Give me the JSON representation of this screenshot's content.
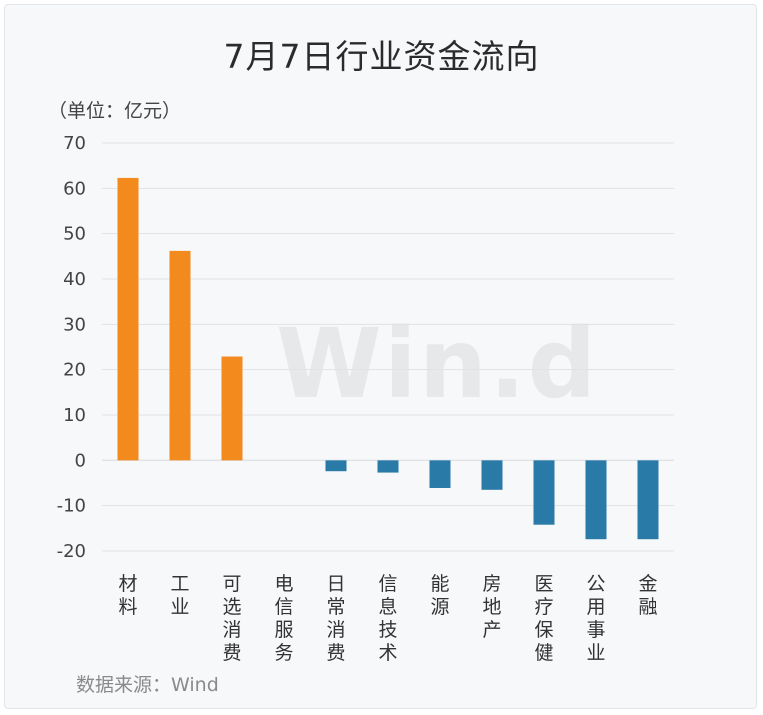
{
  "title": "7月7日行业资金流向",
  "unit_label": "（单位：亿元）",
  "source": "数据来源：Wind",
  "watermark": "Win.d",
  "colors": {
    "positive": "#f28a1d",
    "negative": "#2a7aa8",
    "grid": "#dfe2e6"
  },
  "chart_data": {
    "type": "bar",
    "title": "7月7日行业资金流向",
    "categories": [
      "材料",
      "工业",
      "可选消费",
      "电信服务",
      "日常消费",
      "信息技术",
      "能源",
      "房地产",
      "医疗保健",
      "公用事业",
      "金融"
    ],
    "values": [
      62.3,
      46.2,
      22.9,
      0,
      -2.4,
      -2.7,
      -6.1,
      -6.5,
      -14.2,
      -17.4,
      -17.4
    ],
    "ylim": [
      -20,
      70
    ],
    "yticks": [
      70,
      60,
      50,
      40,
      30,
      20,
      10,
      0,
      -10,
      -20
    ],
    "grid": true,
    "legend": "none"
  }
}
